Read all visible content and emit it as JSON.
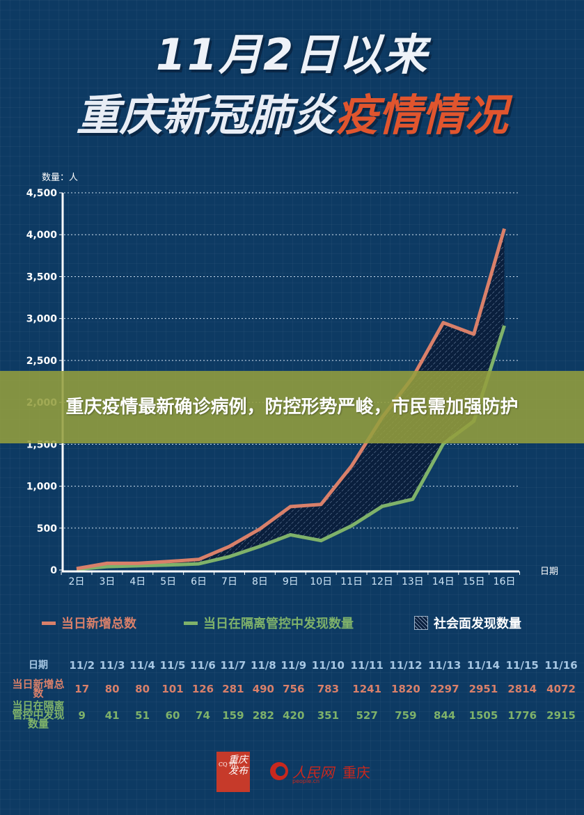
{
  "title": {
    "line1": "11月2日以来",
    "line2_white": "重庆新冠肺炎",
    "line2_accent": "疫情情况"
  },
  "banner": {
    "text": "重庆疫情最新确诊病例，防控形势严峻，市民需加强防护"
  },
  "colors": {
    "background": "#0d3a63",
    "total_line": "#d9806a",
    "isolation_line": "#7fb26a",
    "community_hatch": "#0a1f3d",
    "title_accent": "#e0552e",
    "banner": "#949e3e",
    "logo_red": "#c8281e"
  },
  "chart_data": {
    "type": "line",
    "title": "11月2日以来重庆新冠肺炎疫情情况",
    "xlabel": "日期",
    "ylabel": "数量：人",
    "ylim": [
      0,
      4500
    ],
    "yticks": [
      "0",
      "500",
      "1,000",
      "1,500",
      "2,000",
      "2,500",
      "3,000",
      "3,500",
      "4,000",
      "4,500"
    ],
    "grid": "horizontal dotted",
    "legend_position": "bottom",
    "categories": [
      "2日",
      "3日",
      "4日",
      "5日",
      "6日",
      "7日",
      "8日",
      "9日",
      "10日",
      "11日",
      "12日",
      "13日",
      "14日",
      "15日",
      "16日"
    ],
    "series": [
      {
        "name": "当日新增总数",
        "color": "#d9806a",
        "values": [
          17,
          80,
          80,
          101,
          126,
          281,
          490,
          756,
          783,
          1241,
          1820,
          2297,
          2951,
          2814,
          4072
        ]
      },
      {
        "name": "当日在隔离管控中发现数量",
        "color": "#7fb26a",
        "values": [
          9,
          41,
          51,
          60,
          74,
          159,
          282,
          420,
          351,
          527,
          759,
          844,
          1505,
          1776,
          2915
        ]
      }
    ],
    "area": {
      "name": "社会面发现数量",
      "description": "hatched area between the two series"
    }
  },
  "chart": {
    "y_unit_label": "数量：人",
    "x_unit_label": "日期"
  },
  "legend": {
    "items": [
      {
        "label": "当日新增总数",
        "type": "line"
      },
      {
        "label": "当日在隔离管控中发现数量",
        "type": "line"
      },
      {
        "label": "社会面发现数量",
        "type": "hatch"
      }
    ]
  },
  "table": {
    "header_label": "日期",
    "dates": [
      "11/2",
      "11/3",
      "11/4",
      "11/5",
      "11/6",
      "11/7",
      "11/8",
      "11/9",
      "11/10",
      "11/11",
      "11/12",
      "11/13",
      "11/14",
      "11/15",
      "11/16"
    ],
    "rows": [
      {
        "label": "当日新增总数",
        "values": [
          "17",
          "80",
          "80",
          "101",
          "126",
          "281",
          "490",
          "756",
          "783",
          "1241",
          "1820",
          "2297",
          "2951",
          "2814",
          "4072"
        ]
      },
      {
        "label": "当日在隔离管控中发现数量",
        "values": [
          "9",
          "41",
          "51",
          "60",
          "74",
          "159",
          "282",
          "420",
          "351",
          "527",
          "759",
          "844",
          "1505",
          "1776",
          "2915"
        ]
      }
    ]
  },
  "footer": {
    "seal_latin": "CQ RE",
    "seal_cn": "重庆发布",
    "people_name": "人民网",
    "people_domain": "people.cn",
    "people_city": "重庆"
  }
}
